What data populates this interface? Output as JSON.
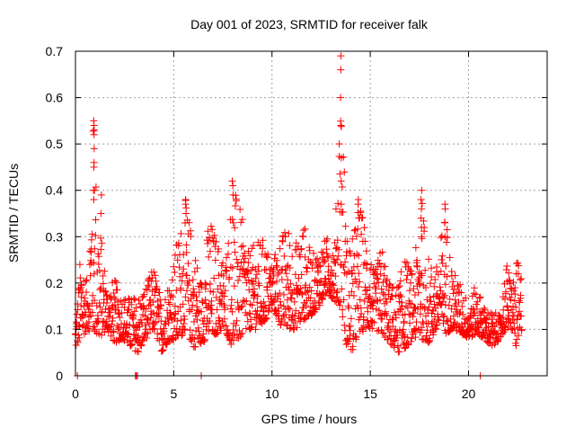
{
  "chart_data": {
    "type": "scatter",
    "title": "Day 001 of 2023, SRMTID for receiver falk",
    "xlabel": "GPS time / hours",
    "ylabel": "SRMTID / TECUs",
    "xlim": [
      0,
      24
    ],
    "ylim": [
      0,
      0.7
    ],
    "xticks": [
      0,
      5,
      10,
      15,
      20
    ],
    "xtick_labels": [
      "0",
      "5",
      "10",
      "15",
      "20"
    ],
    "yticks": [
      0,
      0.1,
      0.2,
      0.3,
      0.4,
      0.5,
      0.6,
      0.7
    ],
    "ytick_labels": [
      "0",
      "0.1",
      "0.2",
      "0.3",
      "0.4",
      "0.5",
      "0.6",
      "0.7"
    ],
    "grid": true,
    "marker": "plus",
    "color": "#ff0000",
    "zero_points_x": [
      0.1,
      3.05,
      3.1,
      3.15,
      6.4,
      20.6
    ],
    "envelope": [
      {
        "x": 0.0,
        "lo": 0.06,
        "hi": 0.12
      },
      {
        "x": 0.3,
        "lo": 0.08,
        "hi": 0.29
      },
      {
        "x": 0.6,
        "lo": 0.1,
        "hi": 0.2
      },
      {
        "x": 0.9,
        "lo": 0.09,
        "hi": 0.55
      },
      {
        "x": 1.2,
        "lo": 0.08,
        "hi": 0.35
      },
      {
        "x": 1.6,
        "lo": 0.1,
        "hi": 0.2
      },
      {
        "x": 2.0,
        "lo": 0.07,
        "hi": 0.21
      },
      {
        "x": 2.4,
        "lo": 0.08,
        "hi": 0.18
      },
      {
        "x": 2.8,
        "lo": 0.06,
        "hi": 0.17
      },
      {
        "x": 3.2,
        "lo": 0.05,
        "hi": 0.18
      },
      {
        "x": 3.6,
        "lo": 0.08,
        "hi": 0.2
      },
      {
        "x": 4.0,
        "lo": 0.1,
        "hi": 0.24
      },
      {
        "x": 4.4,
        "lo": 0.05,
        "hi": 0.16
      },
      {
        "x": 4.8,
        "lo": 0.08,
        "hi": 0.22
      },
      {
        "x": 5.2,
        "lo": 0.07,
        "hi": 0.3
      },
      {
        "x": 5.6,
        "lo": 0.1,
        "hi": 0.38
      },
      {
        "x": 6.0,
        "lo": 0.06,
        "hi": 0.3
      },
      {
        "x": 6.4,
        "lo": 0.07,
        "hi": 0.21
      },
      {
        "x": 6.8,
        "lo": 0.08,
        "hi": 0.35
      },
      {
        "x": 7.2,
        "lo": 0.09,
        "hi": 0.3
      },
      {
        "x": 7.6,
        "lo": 0.1,
        "hi": 0.25
      },
      {
        "x": 8.0,
        "lo": 0.06,
        "hi": 0.42
      },
      {
        "x": 8.4,
        "lo": 0.08,
        "hi": 0.36
      },
      {
        "x": 8.8,
        "lo": 0.1,
        "hi": 0.27
      },
      {
        "x": 9.2,
        "lo": 0.1,
        "hi": 0.29
      },
      {
        "x": 9.6,
        "lo": 0.11,
        "hi": 0.3
      },
      {
        "x": 10.0,
        "lo": 0.15,
        "hi": 0.25
      },
      {
        "x": 10.4,
        "lo": 0.11,
        "hi": 0.3
      },
      {
        "x": 10.8,
        "lo": 0.1,
        "hi": 0.33
      },
      {
        "x": 11.2,
        "lo": 0.1,
        "hi": 0.29
      },
      {
        "x": 11.6,
        "lo": 0.12,
        "hi": 0.34
      },
      {
        "x": 12.0,
        "lo": 0.13,
        "hi": 0.26
      },
      {
        "x": 12.4,
        "lo": 0.15,
        "hi": 0.28
      },
      {
        "x": 12.8,
        "lo": 0.18,
        "hi": 0.3
      },
      {
        "x": 13.2,
        "lo": 0.16,
        "hi": 0.3
      },
      {
        "x": 13.5,
        "lo": 0.15,
        "hi": 0.69
      },
      {
        "x": 13.8,
        "lo": 0.06,
        "hi": 0.31
      },
      {
        "x": 14.1,
        "lo": 0.05,
        "hi": 0.3
      },
      {
        "x": 14.4,
        "lo": 0.09,
        "hi": 0.38
      },
      {
        "x": 14.8,
        "lo": 0.1,
        "hi": 0.33
      },
      {
        "x": 15.2,
        "lo": 0.1,
        "hi": 0.22
      },
      {
        "x": 15.6,
        "lo": 0.09,
        "hi": 0.29
      },
      {
        "x": 16.0,
        "lo": 0.07,
        "hi": 0.2
      },
      {
        "x": 16.4,
        "lo": 0.05,
        "hi": 0.2
      },
      {
        "x": 16.8,
        "lo": 0.06,
        "hi": 0.26
      },
      {
        "x": 17.2,
        "lo": 0.08,
        "hi": 0.22
      },
      {
        "x": 17.6,
        "lo": 0.08,
        "hi": 0.4
      },
      {
        "x": 18.0,
        "lo": 0.07,
        "hi": 0.25
      },
      {
        "x": 18.4,
        "lo": 0.1,
        "hi": 0.24
      },
      {
        "x": 18.8,
        "lo": 0.09,
        "hi": 0.37
      },
      {
        "x": 19.2,
        "lo": 0.1,
        "hi": 0.23
      },
      {
        "x": 19.6,
        "lo": 0.09,
        "hi": 0.2
      },
      {
        "x": 20.0,
        "lo": 0.08,
        "hi": 0.16
      },
      {
        "x": 20.4,
        "lo": 0.09,
        "hi": 0.2
      },
      {
        "x": 20.8,
        "lo": 0.08,
        "hi": 0.15
      },
      {
        "x": 21.2,
        "lo": 0.06,
        "hi": 0.14
      },
      {
        "x": 21.6,
        "lo": 0.08,
        "hi": 0.13
      },
      {
        "x": 21.9,
        "lo": 0.1,
        "hi": 0.25
      },
      {
        "x": 22.2,
        "lo": 0.1,
        "hi": 0.21
      },
      {
        "x": 22.5,
        "lo": 0.05,
        "hi": 0.25
      },
      {
        "x": 22.7,
        "lo": 0.09,
        "hi": 0.23
      }
    ],
    "spikes": [
      {
        "x": 0.95,
        "values": [
          0.55,
          0.54,
          0.53,
          0.52,
          0.49,
          0.46,
          0.45,
          0.4,
          0.38
        ]
      },
      {
        "x": 1.3,
        "values": [
          0.39,
          0.35
        ]
      },
      {
        "x": 5.6,
        "values": [
          0.38,
          0.37,
          0.35
        ]
      },
      {
        "x": 8.0,
        "values": [
          0.42,
          0.41,
          0.39
        ]
      },
      {
        "x": 13.5,
        "values": [
          0.69,
          0.66,
          0.6,
          0.54,
          0.47,
          0.42,
          0.37
        ]
      },
      {
        "x": 14.4,
        "values": [
          0.38,
          0.37,
          0.34
        ]
      },
      {
        "x": 17.6,
        "values": [
          0.4,
          0.38,
          0.36,
          0.34,
          0.32,
          0.3
        ]
      },
      {
        "x": 18.8,
        "values": [
          0.37,
          0.36,
          0.33,
          0.3
        ]
      }
    ]
  }
}
